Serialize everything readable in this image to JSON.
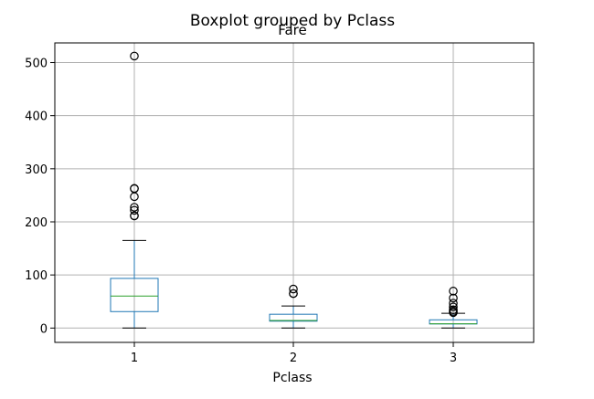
{
  "chart_data": {
    "type": "box",
    "suptitle": "Boxplot grouped by Pclass",
    "title": "Fare",
    "xlabel": "Pclass",
    "ylabel": "",
    "categories": [
      "1",
      "2",
      "3"
    ],
    "ylim": [
      -27,
      537
    ],
    "yticks": [
      0,
      100,
      200,
      300,
      400,
      500
    ],
    "grid": true,
    "colors": {
      "box": "#1f77b4",
      "median": "#2ca02c",
      "whisker": "#000000",
      "grid": "#b0b0b0"
    },
    "boxes": [
      {
        "category": "1",
        "whislo": 0,
        "q1": 31,
        "median": 60.3,
        "q3": 93.5,
        "whishi": 164.9,
        "fliers": [
          512.3,
          263,
          262.4,
          247.5,
          227.5,
          221.8,
          211.5,
          211.3
        ]
      },
      {
        "category": "2",
        "whislo": 0,
        "q1": 13,
        "median": 14.25,
        "q3": 26,
        "whishi": 41.6,
        "fliers": [
          73.5,
          65,
          65
        ]
      },
      {
        "category": "3",
        "whislo": 0,
        "q1": 7.75,
        "median": 8.05,
        "q3": 15.5,
        "whishi": 27.9,
        "fliers": [
          69.55,
          56.5,
          46.9,
          39.7,
          34.4,
          31.3,
          29.1
        ]
      }
    ]
  }
}
